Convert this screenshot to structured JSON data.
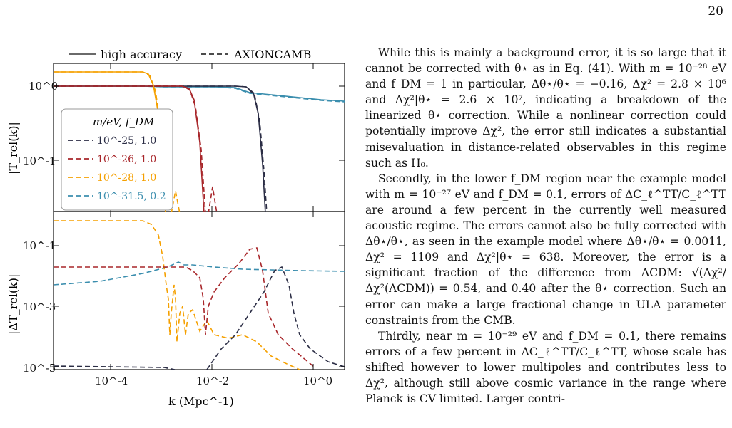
{
  "page": {
    "number": "20"
  },
  "figure": {
    "legend_top": {
      "solid_label": "high accuracy",
      "dashed_label": "AXIONCAMB"
    },
    "legend_box": {
      "header": "m/eV, f_DM",
      "entries": [
        {
          "m": "10^-25",
          "f": "1.0",
          "color": "#2b2d45"
        },
        {
          "m": "10^-26",
          "f": "1.0",
          "color": "#a8262a"
        },
        {
          "m": "10^-28",
          "f": "1.0",
          "color": "#f5a000"
        },
        {
          "m": "10^-31.5",
          "f": "0.2",
          "color": "#3b8eae"
        }
      ]
    },
    "top_panel": {
      "ylabel": "|T_rel(k)|",
      "ticks": [
        "10^0",
        "10^-1"
      ]
    },
    "bottom_panel": {
      "ylabel": "|ΔT_rel(k)|",
      "ticks": [
        "10^-1",
        "10^-3",
        "10^-5"
      ]
    },
    "xaxis": {
      "label": "k (Mpc^-1)",
      "ticks": [
        "10^-4",
        "10^-2",
        "10^0"
      ]
    }
  },
  "text": {
    "p1": "While this is mainly a background error, it is so large that it cannot be corrected with θ⋆ as in Eq. (41). With m = 10⁻²⁸ eV and f_DM = 1 in particular, Δθ⋆/θ⋆ = −0.16, Δχ² = 2.8 × 10⁶ and Δχ²|θ⋆ = 2.6 × 10⁷, indicating a breakdown of the linearized θ⋆ correction. While a nonlinear correction could potentially improve Δχ², the error still indicates a substantial misevaluation in distance-related observables in this regime such as H₀.",
    "p2": "Secondly, in the lower f_DM region near the example model with m = 10⁻²⁷ eV and f_DM = 0.1, errors of ΔC_ℓ^TT/C_ℓ^TT are around a few percent in the currently well measured acoustic regime. The errors cannot also be fully corrected with Δθ⋆/θ⋆, as seen in the example model where Δθ⋆/θ⋆ = 0.0011, Δχ² = 1109 and Δχ²|θ⋆ = 638. Moreover, the error is a significant fraction of the difference from ΛCDM: √(Δχ²/Δχ²(ΛCDM)) = 0.54, and 0.40 after the θ⋆ correction. Such an error can make a large fractional change in ULA parameter constraints from the CMB.",
    "p3": "Thirdly, near m = 10⁻²⁹ eV and f_DM = 0.1, there remains errors of a few percent in ΔC_ℓ^TT/C_ℓ^TT, whose scale has shifted however to lower multipoles and contributes less to Δχ², although still above cosmic variance in the range where Planck is CV limited. Larger contri-"
  }
}
